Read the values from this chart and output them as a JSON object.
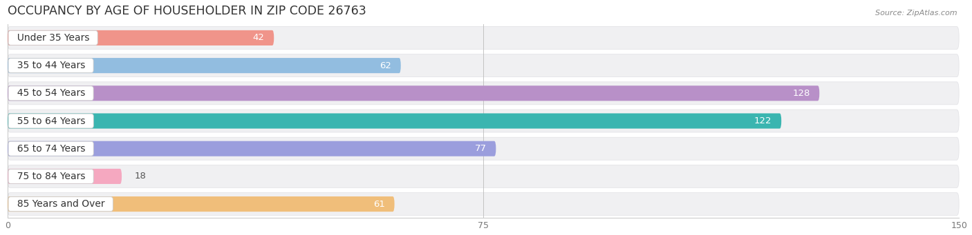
{
  "title": "OCCUPANCY BY AGE OF HOUSEHOLDER IN ZIP CODE 26763",
  "source": "Source: ZipAtlas.com",
  "categories": [
    "Under 35 Years",
    "35 to 44 Years",
    "45 to 54 Years",
    "55 to 64 Years",
    "65 to 74 Years",
    "75 to 84 Years",
    "85 Years and Over"
  ],
  "values": [
    42,
    62,
    128,
    122,
    77,
    18,
    61
  ],
  "bar_colors": [
    "#f0948a",
    "#92bde0",
    "#b890c8",
    "#3ab5b0",
    "#9b9edd",
    "#f5a8c0",
    "#f0be7a"
  ],
  "row_bg_color": "#efefef",
  "row_bg_light": "#f7f7f7",
  "xlim": [
    0,
    150
  ],
  "xticks": [
    0,
    75,
    150
  ],
  "title_fontsize": 12.5,
  "label_fontsize": 10,
  "value_fontsize": 9.5,
  "background_color": "#ffffff"
}
